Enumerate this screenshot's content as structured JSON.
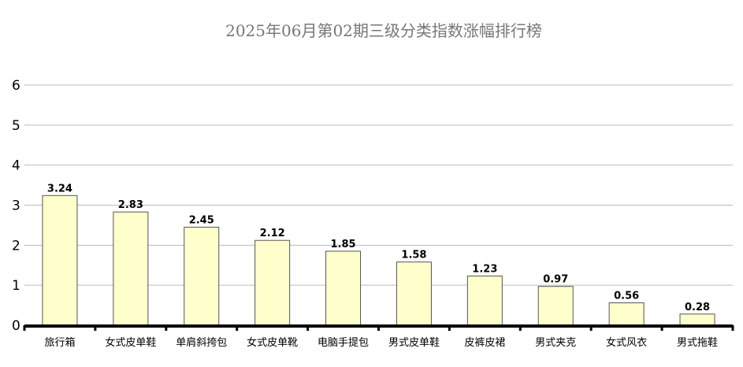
{
  "chart_data": {
    "type": "bar",
    "title": "2025年06月第02期三级分类指数涨幅排行榜",
    "xlabel": "",
    "ylabel": "",
    "categories": [
      "旅行箱",
      "女式皮单鞋",
      "单肩斜挎包",
      "女式皮单靴",
      "电脑手提包",
      "男式皮单鞋",
      "皮裤皮裙",
      "男式夹克",
      "女式风衣",
      "男式拖鞋"
    ],
    "values": [
      3.24,
      2.83,
      2.45,
      2.12,
      1.85,
      1.58,
      1.23,
      0.97,
      0.56,
      0.28
    ],
    "value_labels": [
      "3.24",
      "2.83",
      "2.45",
      "2.12",
      "1.85",
      "1.58",
      "1.23",
      "0.97",
      "0.56",
      "0.28"
    ],
    "ylim": [
      0,
      6
    ],
    "yticks": [
      0,
      1,
      2,
      3,
      4,
      5,
      6
    ],
    "ytick_labels": [
      "0",
      "1",
      "2",
      "3",
      "4",
      "5",
      "6"
    ],
    "grid": true,
    "legend": "none",
    "colors": {
      "bar_fill": "#ffffcc",
      "bar_stroke": "#555555",
      "grid": "#bbbbbb",
      "title": "#777777"
    }
  }
}
